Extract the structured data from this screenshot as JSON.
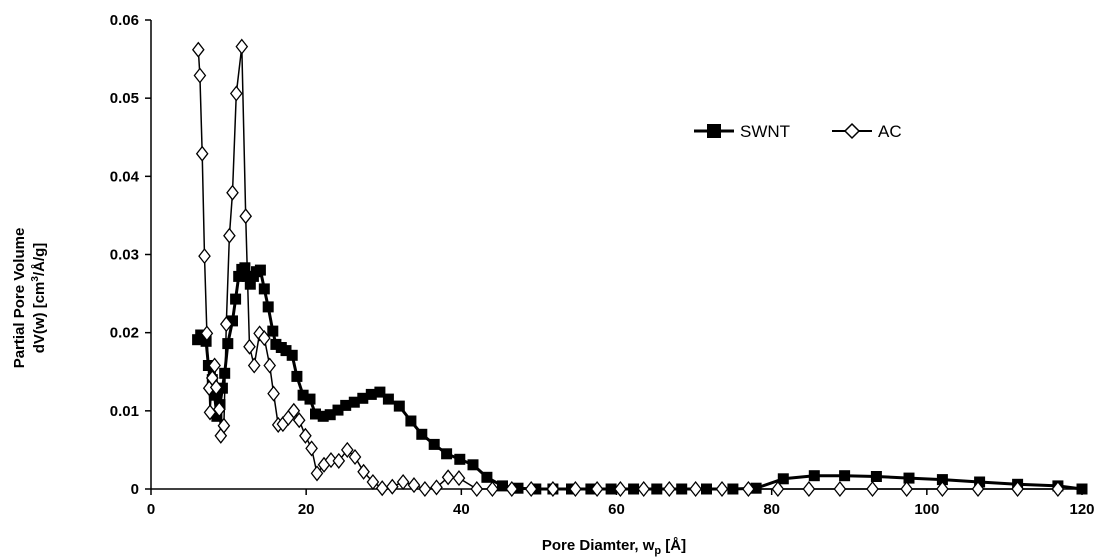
{
  "chart_data": {
    "type": "line",
    "title": "",
    "xlabel": {
      "main": "Pore Diamter, w",
      "sub": "p",
      "suffix": " [Å]"
    },
    "ylabel": {
      "line1": "Partial Pore Volume",
      "line2_pre": "dV(w) [cm",
      "line2_sup": "3",
      "line2_post": "/Å/g]"
    },
    "xlim": [
      0,
      120
    ],
    "ylim": [
      0,
      0.06
    ],
    "xticks": [
      0,
      20,
      40,
      60,
      80,
      100,
      120
    ],
    "yticks": [
      0,
      0.01,
      0.02,
      0.03,
      0.04,
      0.05,
      0.06
    ],
    "xtick_labels": [
      "0",
      "20",
      "40",
      "60",
      "80",
      "100",
      "120"
    ],
    "ytick_labels": [
      "0",
      "0.01",
      "0.02",
      "0.03",
      "0.04",
      "0.05",
      "0.06"
    ],
    "grid": false,
    "legend_position": "top-right",
    "series": [
      {
        "name": "SWNT",
        "marker": "square-filled",
        "color": "#000000",
        "points": [
          [
            6.0,
            0.0191
          ],
          [
            6.4,
            0.0197
          ],
          [
            7.1,
            0.0189
          ],
          [
            7.4,
            0.0158
          ],
          [
            7.9,
            0.014
          ],
          [
            8.2,
            0.012
          ],
          [
            8.5,
            0.0093
          ],
          [
            8.9,
            0.0108
          ],
          [
            9.2,
            0.0129
          ],
          [
            9.5,
            0.0148
          ],
          [
            9.9,
            0.0186
          ],
          [
            10.5,
            0.0215
          ],
          [
            10.9,
            0.0243
          ],
          [
            11.3,
            0.0272
          ],
          [
            11.7,
            0.0281
          ],
          [
            12.1,
            0.0283
          ],
          [
            12.4,
            0.0272
          ],
          [
            12.8,
            0.0262
          ],
          [
            13.2,
            0.0272
          ],
          [
            13.6,
            0.0278
          ],
          [
            14.1,
            0.028
          ],
          [
            14.6,
            0.0256
          ],
          [
            15.1,
            0.0233
          ],
          [
            15.7,
            0.0202
          ],
          [
            16.1,
            0.0185
          ],
          [
            16.8,
            0.0181
          ],
          [
            17.4,
            0.0177
          ],
          [
            18.2,
            0.0171
          ],
          [
            18.8,
            0.0144
          ],
          [
            19.6,
            0.012
          ],
          [
            20.5,
            0.0115
          ],
          [
            21.2,
            0.0096
          ],
          [
            22.2,
            0.0093
          ],
          [
            23.1,
            0.0095
          ],
          [
            24.1,
            0.0101
          ],
          [
            25.1,
            0.0107
          ],
          [
            26.2,
            0.0111
          ],
          [
            27.3,
            0.0116
          ],
          [
            28.4,
            0.0121
          ],
          [
            29.5,
            0.0124
          ],
          [
            30.6,
            0.0115
          ],
          [
            32.0,
            0.0106
          ],
          [
            33.5,
            0.0087
          ],
          [
            34.9,
            0.007
          ],
          [
            36.5,
            0.0057
          ],
          [
            38.1,
            0.0045
          ],
          [
            39.8,
            0.0038
          ],
          [
            41.5,
            0.0031
          ],
          [
            43.3,
            0.0015
          ],
          [
            45.3,
            0.0004
          ],
          [
            47.3,
            0.0001
          ],
          [
            49.6,
            0.0
          ],
          [
            51.8,
            0.0
          ],
          [
            54.2,
            0.0
          ],
          [
            56.7,
            0.0
          ],
          [
            59.3,
            0.0
          ],
          [
            62.2,
            0.0
          ],
          [
            65.2,
            0.0
          ],
          [
            68.4,
            0.0
          ],
          [
            71.6,
            0.0
          ],
          [
            75.0,
            0.0
          ],
          [
            78.0,
            0.0001
          ],
          [
            81.5,
            0.0013
          ],
          [
            85.5,
            0.0017
          ],
          [
            89.4,
            0.0017
          ],
          [
            93.5,
            0.0016
          ],
          [
            97.7,
            0.0014
          ],
          [
            102.0,
            0.0012
          ],
          [
            106.8,
            0.0009
          ],
          [
            111.7,
            0.0006
          ],
          [
            116.9,
            0.0004
          ],
          [
            120.0,
            0.0
          ]
        ]
      },
      {
        "name": "AC",
        "marker": "diamond-open",
        "color": "#000000",
        "points": [
          [
            6.1,
            0.0562
          ],
          [
            6.3,
            0.0529
          ],
          [
            6.6,
            0.0429
          ],
          [
            6.9,
            0.0298
          ],
          [
            7.2,
            0.0199
          ],
          [
            7.5,
            0.0129
          ],
          [
            7.6,
            0.0098
          ],
          [
            7.9,
            0.0142
          ],
          [
            8.2,
            0.0158
          ],
          [
            8.4,
            0.013
          ],
          [
            8.8,
            0.0102
          ],
          [
            9.0,
            0.0068
          ],
          [
            9.4,
            0.0081
          ],
          [
            9.7,
            0.0211
          ],
          [
            10.1,
            0.0324
          ],
          [
            10.5,
            0.0379
          ],
          [
            11.0,
            0.0506
          ],
          [
            11.7,
            0.0566
          ],
          [
            12.2,
            0.0349
          ],
          [
            12.7,
            0.0182
          ],
          [
            13.3,
            0.0158
          ],
          [
            14.0,
            0.0199
          ],
          [
            14.6,
            0.0193
          ],
          [
            15.3,
            0.0158
          ],
          [
            15.8,
            0.0122
          ],
          [
            16.4,
            0.0082
          ],
          [
            17.0,
            0.0083
          ],
          [
            17.7,
            0.0091
          ],
          [
            18.4,
            0.01
          ],
          [
            19.1,
            0.0088
          ],
          [
            19.9,
            0.0068
          ],
          [
            20.7,
            0.0052
          ],
          [
            21.4,
            0.002
          ],
          [
            22.3,
            0.0031
          ],
          [
            23.2,
            0.0037
          ],
          [
            24.2,
            0.0036
          ],
          [
            25.3,
            0.005
          ],
          [
            26.3,
            0.0041
          ],
          [
            27.4,
            0.0022
          ],
          [
            28.6,
            0.0009
          ],
          [
            29.8,
            0.0001
          ],
          [
            31.1,
            0.0003
          ],
          [
            32.5,
            0.0009
          ],
          [
            33.9,
            0.0005
          ],
          [
            35.3,
            0.0
          ],
          [
            36.8,
            0.0002
          ],
          [
            38.3,
            0.0015
          ],
          [
            39.7,
            0.0014
          ],
          [
            42.0,
            0.0
          ],
          [
            44.0,
            0.0
          ],
          [
            46.5,
            0.0
          ],
          [
            49.0,
            0.0
          ],
          [
            51.8,
            0.0
          ],
          [
            54.7,
            0.0
          ],
          [
            57.5,
            0.0
          ],
          [
            60.5,
            0.0
          ],
          [
            63.5,
            0.0
          ],
          [
            66.8,
            0.0
          ],
          [
            70.2,
            0.0
          ],
          [
            73.6,
            0.0
          ],
          [
            77.0,
            0.0
          ],
          [
            80.8,
            0.0
          ],
          [
            84.8,
            0.0
          ],
          [
            88.8,
            0.0
          ],
          [
            93.0,
            0.0
          ],
          [
            97.4,
            0.0
          ],
          [
            102.0,
            0.0
          ],
          [
            106.6,
            0.0
          ],
          [
            111.7,
            0.0
          ],
          [
            116.9,
            0.0
          ]
        ]
      }
    ]
  }
}
